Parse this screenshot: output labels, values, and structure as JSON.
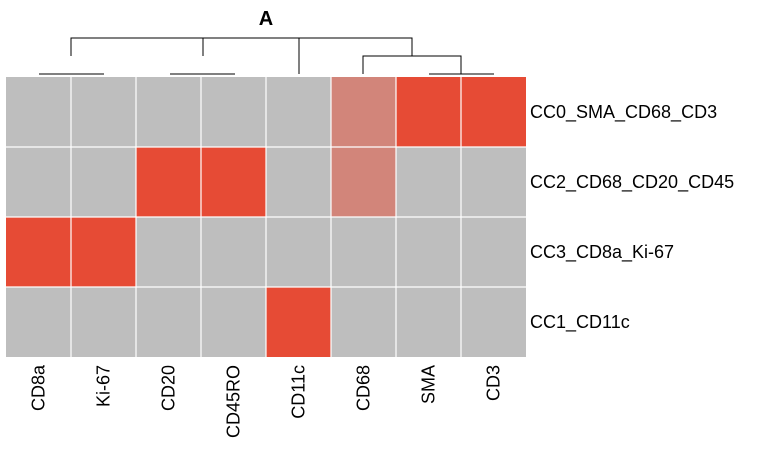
{
  "chart_data": {
    "type": "heatmap",
    "title": "A",
    "columns": [
      "CD8a",
      "Ki-67",
      "CD20",
      "CD45RO",
      "CD11c",
      "CD68",
      "SMA",
      "CD3"
    ],
    "rows": [
      "CC0_SMA_CD68_CD3",
      "CC2_CD68_CD20_CD45",
      "CC3_CD8a_Ki-67",
      "CC1_CD11c"
    ],
    "values": [
      [
        0,
        0,
        0,
        0,
        0,
        0.5,
        1,
        1
      ],
      [
        0,
        0,
        1,
        1,
        0,
        0.5,
        0,
        0
      ],
      [
        1,
        1,
        0,
        0,
        0,
        0,
        0,
        0
      ],
      [
        0,
        0,
        0,
        0,
        1,
        0,
        0,
        0
      ]
    ],
    "colors": {
      "low": "#bebebe",
      "high": "#e64b35",
      "grid": "#ffffff",
      "dendrogram": "#000000"
    },
    "column_dendrogram": true,
    "legend": "none"
  }
}
